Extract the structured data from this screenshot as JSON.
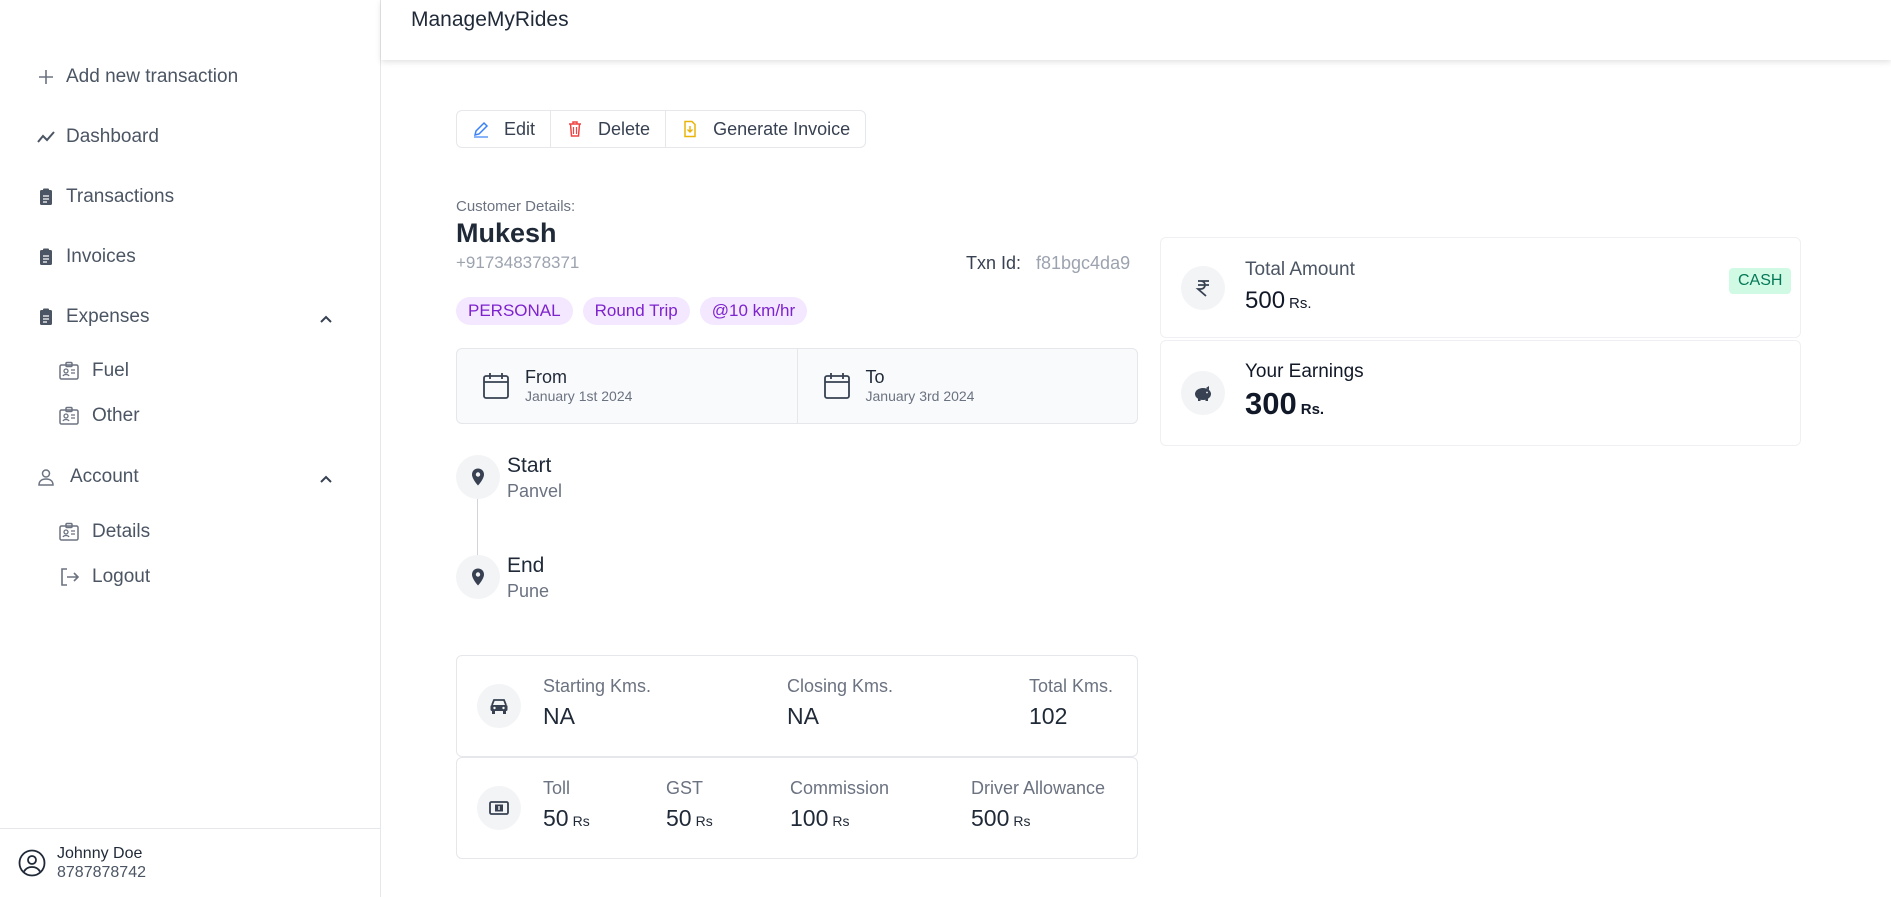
{
  "sidebar": {
    "add_label": "Add new transaction",
    "items": [
      {
        "label": "Dashboard"
      },
      {
        "label": "Transactions"
      },
      {
        "label": "Invoices"
      },
      {
        "label": "Expenses"
      },
      {
        "label": "Account"
      }
    ],
    "expenses_sub": [
      {
        "label": "Fuel"
      },
      {
        "label": "Other"
      }
    ],
    "account_sub": [
      {
        "label": "Details"
      },
      {
        "label": "Logout"
      }
    ],
    "user": {
      "name": "Johnny Doe",
      "phone": "8787878742"
    }
  },
  "header": {
    "title": "ManageMyRides"
  },
  "toolbar": {
    "edit": "Edit",
    "delete": "Delete",
    "invoice": "Generate Invoice"
  },
  "customer": {
    "section_label": "Customer Details:",
    "name": "Mukesh",
    "phone": "+917348378371",
    "txn_label": "Txn Id:",
    "txn_id": "f81bgc4da9",
    "tags": [
      "PERSONAL",
      "Round Trip",
      "@10 km/hr"
    ]
  },
  "dates": {
    "from_label": "From",
    "from_value": "January 1st 2024",
    "to_label": "To",
    "to_value": "January 3rd 2024"
  },
  "route": {
    "start_label": "Start",
    "start_value": "Panvel",
    "end_label": "End",
    "end_value": "Pune"
  },
  "kms": {
    "starting_label": "Starting Kms.",
    "starting_value": "NA",
    "closing_label": "Closing Kms.",
    "closing_value": "NA",
    "total_label": "Total Kms.",
    "total_value": "102"
  },
  "charges": {
    "unit": "Rs",
    "toll_label": "Toll",
    "toll_value": "50",
    "gst_label": "GST",
    "gst_value": "50",
    "commission_label": "Commission",
    "commission_value": "100",
    "driver_label": "Driver Allowance",
    "driver_value": "500"
  },
  "summary": {
    "unit": "Rs.",
    "total_label": "Total Amount",
    "total_value": "500",
    "payment_mode": "CASH",
    "earnings_label": "Your Earnings",
    "earnings_value": "300"
  },
  "colors": {
    "tag_bg": "#f3e8ff",
    "tag_text": "#7e22ce",
    "cash_bg": "#d1fae5",
    "cash_text": "#047857",
    "delete_icon": "#ef4444",
    "invoice_icon": "#eab308",
    "edit_icon": "#3b82f6"
  }
}
